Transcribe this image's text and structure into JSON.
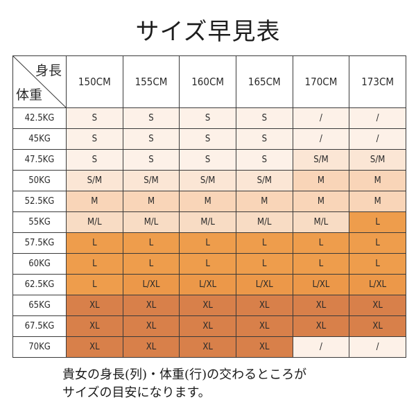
{
  "title": "サイズ早見表",
  "corner": {
    "height_label": "身長",
    "weight_label": "体重"
  },
  "heights": [
    "150CM",
    "155CM",
    "160CM",
    "165CM",
    "170CM",
    "173CM"
  ],
  "rows": [
    {
      "weight": "42.5KG",
      "sizes": [
        "S",
        "S",
        "S",
        "S",
        "/",
        "/"
      ]
    },
    {
      "weight": "45KG",
      "sizes": [
        "S",
        "S",
        "S",
        "S",
        "/",
        "/"
      ]
    },
    {
      "weight": "47.5KG",
      "sizes": [
        "S",
        "S",
        "S",
        "S",
        "S/M",
        "S/M"
      ]
    },
    {
      "weight": "50KG",
      "sizes": [
        "S/M",
        "S/M",
        "S/M",
        "S/M",
        "M",
        "M"
      ]
    },
    {
      "weight": "52.5KG",
      "sizes": [
        "M",
        "M",
        "M",
        "M",
        "M",
        "M"
      ]
    },
    {
      "weight": "55KG",
      "sizes": [
        "M/L",
        "M/L",
        "M/L",
        "M/L",
        "M/L",
        "L"
      ]
    },
    {
      "weight": "57.5KG",
      "sizes": [
        "L",
        "L",
        "L",
        "L",
        "L",
        "L"
      ]
    },
    {
      "weight": "60KG",
      "sizes": [
        "L",
        "L",
        "L",
        "L",
        "L",
        "L"
      ]
    },
    {
      "weight": "62.5KG",
      "sizes": [
        "L",
        "L/XL",
        "L/XL",
        "L/XL",
        "L/XL",
        "L/XL"
      ]
    },
    {
      "weight": "65KG",
      "sizes": [
        "XL",
        "XL",
        "XL",
        "XL",
        "XL",
        "XL"
      ]
    },
    {
      "weight": "67.5KG",
      "sizes": [
        "XL",
        "XL",
        "XL",
        "XL",
        "XL",
        "XL"
      ]
    },
    {
      "weight": "70KG",
      "sizes": [
        "XL",
        "XL",
        "XL",
        "XL",
        "/",
        "/"
      ]
    }
  ],
  "size_colors": {
    "S": "#fdf1e8",
    "S/M": "#fbe6d5",
    "M": "#f9d5b8",
    "M/L": "#f8dcc4",
    "L": "#ee9d4c",
    "L/XL": "#ec9849",
    "XL": "#d8804a",
    "/": "#fdf1e8"
  },
  "note": {
    "line1": "貴女の身長(列)・体重(行)の交わるところが",
    "line2": "サイズの目安になります。"
  }
}
